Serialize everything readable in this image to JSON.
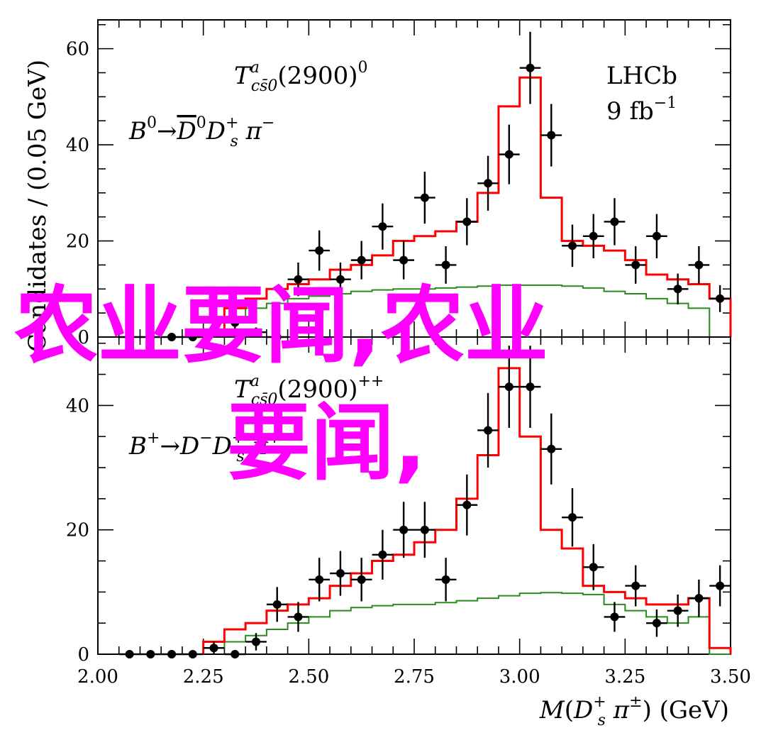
{
  "chart_data": [
    {
      "type": "line",
      "panel": "top",
      "particle_label": "T^a_{cs̄0}(2900)^0",
      "decay_label": "B^0 → D̄^0 D_s^+ π^−",
      "experiment": "LHCb",
      "luminosity": "9 fb^−1",
      "ylabel": "Candidates / (0.05 GeV)",
      "xlim": [
        2.0,
        3.5
      ],
      "ylim": [
        0,
        66
      ],
      "yticks": [
        0,
        20,
        40,
        60
      ],
      "points": {
        "x": [
          2.075,
          2.125,
          2.175,
          2.225,
          2.275,
          2.325,
          2.375,
          2.425,
          2.475,
          2.525,
          2.575,
          2.625,
          2.675,
          2.725,
          2.775,
          2.825,
          2.875,
          2.925,
          2.975,
          3.025,
          3.075,
          3.125,
          3.175,
          3.225,
          3.275,
          3.325,
          3.375,
          3.425,
          3.475
        ],
        "y": [
          0,
          0,
          0,
          0,
          1,
          3,
          1,
          0,
          12,
          18,
          12,
          16,
          23,
          16,
          29,
          15,
          24,
          32,
          38,
          56,
          42,
          19,
          21,
          24,
          15,
          21,
          10,
          15,
          8
        ],
        "err": [
          0,
          0,
          0,
          0,
          1,
          1.7,
          1,
          0,
          3.5,
          4.2,
          3.5,
          4,
          4.8,
          4,
          5.4,
          3.9,
          4.9,
          5.7,
          6.2,
          7.5,
          6.5,
          4.4,
          4.6,
          4.9,
          3.9,
          4.6,
          3.2,
          3.9,
          2.8
        ]
      },
      "fit_total": {
        "edges": [
          2.25,
          2.3,
          2.35,
          2.4,
          2.45,
          2.5,
          2.55,
          2.6,
          2.65,
          2.7,
          2.75,
          2.8,
          2.85,
          2.9,
          2.95,
          3.0,
          3.05,
          3.1,
          3.15,
          3.2,
          3.25,
          3.3,
          3.35,
          3.4,
          3.45,
          3.5
        ],
        "values": [
          1,
          6,
          8,
          10,
          11,
          12,
          14,
          15,
          17,
          20,
          21,
          22,
          24,
          30,
          48,
          54,
          29,
          20,
          19,
          18,
          16,
          13,
          12,
          11,
          8,
          0
        ]
      },
      "fit_component": {
        "edges": [
          2.25,
          2.3,
          2.35,
          2.4,
          2.45,
          2.5,
          2.55,
          2.6,
          2.65,
          2.7,
          2.75,
          2.8,
          2.85,
          2.9,
          2.95,
          3.0,
          3.05,
          3.1,
          3.15,
          3.2,
          3.25,
          3.3,
          3.35,
          3.4,
          3.45,
          3.5
        ],
        "values": [
          1,
          4,
          6,
          7,
          8,
          8.5,
          9,
          9.5,
          9.8,
          10,
          10,
          10.2,
          10.4,
          10.6,
          10.8,
          10.8,
          10.8,
          10.6,
          10.2,
          9.5,
          9,
          8,
          7,
          6,
          0,
          0
        ]
      }
    },
    {
      "type": "line",
      "panel": "bottom",
      "particle_label": "T^a_{cs̄0}(2900)^++",
      "decay_label": "B^+ → D^− D_s^+ π^+",
      "ylabel": "Candidates / (0.05 GeV)",
      "xlabel": "M(D_s^+ π^±) (GeV)",
      "xlim": [
        2.0,
        3.5
      ],
      "ylim": [
        0,
        51
      ],
      "yticks": [
        0,
        20,
        40
      ],
      "xticks": [
        "2.00",
        "2.25",
        "2.50",
        "2.75",
        "3.00",
        "3.25",
        "3.50"
      ],
      "points": {
        "x": [
          2.075,
          2.125,
          2.175,
          2.225,
          2.275,
          2.325,
          2.375,
          2.425,
          2.475,
          2.525,
          2.575,
          2.625,
          2.675,
          2.725,
          2.775,
          2.825,
          2.875,
          2.925,
          2.975,
          3.025,
          3.075,
          3.125,
          3.175,
          3.225,
          3.275,
          3.325,
          3.375,
          3.425,
          3.475
        ],
        "y": [
          0,
          0,
          0,
          0,
          1,
          0,
          2,
          8,
          6,
          12,
          13,
          12,
          16,
          20,
          20,
          12,
          24,
          36,
          43,
          43,
          33,
          22,
          14,
          6,
          11,
          5,
          7,
          9,
          11
        ],
        "err": [
          0,
          0,
          0,
          0,
          1,
          0,
          1.4,
          2.8,
          2.4,
          3.5,
          3.6,
          3.5,
          4,
          4.5,
          4.5,
          3.5,
          4.9,
          6,
          6.6,
          6.6,
          5.7,
          4.7,
          3.7,
          2.4,
          3.3,
          2.2,
          2.6,
          3,
          3.3
        ]
      },
      "fit_total": {
        "edges": [
          2.25,
          2.3,
          2.35,
          2.4,
          2.45,
          2.5,
          2.55,
          2.6,
          2.65,
          2.7,
          2.75,
          2.8,
          2.85,
          2.9,
          2.95,
          3.0,
          3.05,
          3.1,
          3.15,
          3.2,
          3.25,
          3.3,
          3.35,
          3.4,
          3.45,
          3.5
        ],
        "values": [
          2,
          4,
          5,
          7,
          8,
          9,
          11,
          13,
          15,
          16,
          18,
          20,
          25,
          32,
          46,
          35,
          20,
          17,
          11,
          10,
          9,
          8,
          8,
          9,
          1,
          0
        ]
      },
      "fit_component": {
        "edges": [
          2.25,
          2.3,
          2.35,
          2.4,
          2.45,
          2.5,
          2.55,
          2.6,
          2.65,
          2.7,
          2.75,
          2.8,
          2.85,
          2.9,
          2.95,
          3.0,
          3.05,
          3.1,
          3.15,
          3.2,
          3.25,
          3.3,
          3.35,
          3.4,
          3.45,
          3.5
        ],
        "values": [
          1,
          2,
          3,
          4,
          5,
          6,
          7,
          7.5,
          7.8,
          8,
          8,
          8.3,
          8.6,
          9,
          9.4,
          9.8,
          9.9,
          9.8,
          9.6,
          8,
          7,
          6,
          5,
          6,
          0,
          0
        ]
      }
    }
  ],
  "colors": {
    "data": "#000000",
    "fit_total": "#ff0000",
    "fit_component": "#2a8a1e",
    "watermark": "#ff00ff"
  },
  "watermark": {
    "line1": "农业要闻,农业",
    "line2": "要闻,"
  }
}
